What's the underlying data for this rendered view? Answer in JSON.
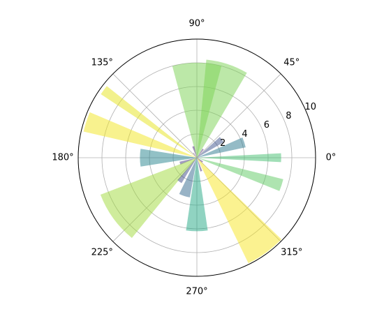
{
  "chart_data": {
    "type": "polar-bar",
    "theta": [
      0,
      18,
      36,
      54,
      72,
      90,
      108,
      126,
      144,
      162,
      180,
      198,
      216,
      234,
      252,
      270,
      288,
      306,
      324,
      342
    ],
    "values": [
      7.1,
      4.2,
      2.6,
      0.9,
      8.3,
      8.0,
      1.0,
      0.5,
      9.7,
      9.8,
      4.8,
      1.5,
      8.7,
      2.5,
      3.4,
      6.2,
      1.2,
      9.9,
      0.6,
      7.5
    ],
    "widths": [
      6,
      12,
      12,
      8,
      25,
      30,
      10,
      6,
      5,
      10,
      18,
      10,
      30,
      10,
      16,
      17,
      8,
      20,
      10,
      8
    ],
    "colors": [
      "#44bf70",
      "#2a788e",
      "#3b528b",
      "#482475",
      "#7ad151",
      "#7ad151",
      "#482475",
      "#46085c",
      "#e5e419",
      "#f1e51d",
      "#25848e",
      "#453781",
      "#a0da39",
      "#3e4a89",
      "#31688e",
      "#22a884",
      "#472d7b",
      "#f8e621",
      "#470e61",
      "#5ec962"
    ],
    "alpha": 0.5,
    "ylim": [
      0,
      10
    ],
    "yticks": [
      2,
      4,
      6,
      8,
      10
    ],
    "xticks": [
      {
        "value": 0,
        "label": "0°"
      },
      {
        "value": 45,
        "label": "45°"
      },
      {
        "value": 90,
        "label": "90°"
      },
      {
        "value": 135,
        "label": "135°"
      },
      {
        "value": 180,
        "label": "180°"
      },
      {
        "value": 225,
        "label": "225°"
      },
      {
        "value": 270,
        "label": "270°"
      },
      {
        "value": 315,
        "label": "315°"
      }
    ],
    "grid": true
  }
}
